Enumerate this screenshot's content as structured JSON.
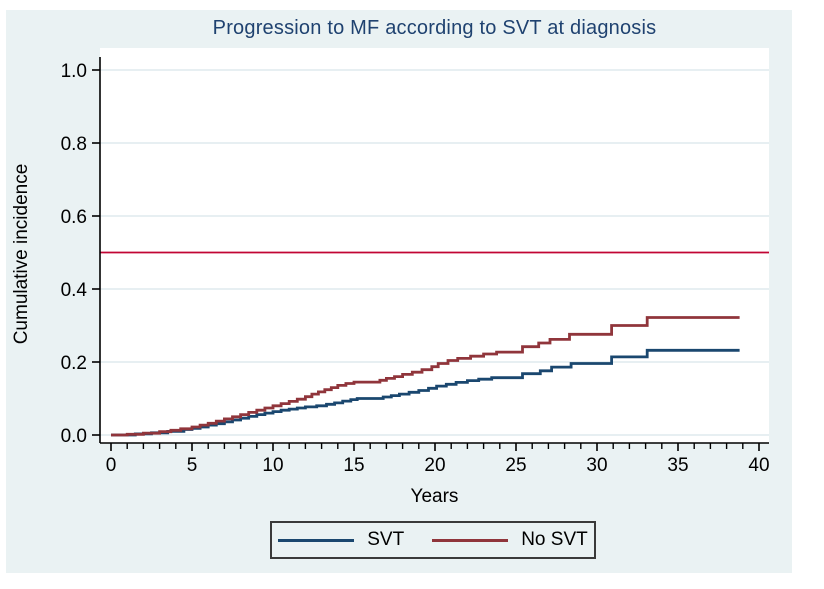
{
  "title": {
    "text": "Progression to MF according to SVT at diagnosis"
  },
  "axis_titles": {
    "x": "Years",
    "y": "Cumulative incidence"
  },
  "legend": {
    "items": [
      {
        "label": "SVT",
        "color": "#1a476f"
      },
      {
        "label": "No SVT",
        "color": "#90353b"
      }
    ]
  },
  "colors": {
    "background": "#eaf2f3",
    "plot_background": "#ffffff",
    "gridline": "#dfeaed",
    "axis": "#000000",
    "title": "#1f4270",
    "reference_line": "#c10534",
    "svt_series": "#1a476f",
    "no_svt_series": "#90353b"
  },
  "chart_data": {
    "type": "line",
    "subtype": "step-cumulative-incidence",
    "title": "Progression to MF according to SVT at diagnosis",
    "xlabel": "Years",
    "ylabel": "Cumulative incidence",
    "xlim": [
      0,
      40
    ],
    "ylim": [
      0.0,
      1.0
    ],
    "grid": true,
    "legend_position": "bottom",
    "x_ticks": [
      0,
      5,
      10,
      15,
      20,
      25,
      30,
      35,
      40
    ],
    "x_minor_tick_step": 1,
    "y_ticks": [
      {
        "value": 0.0,
        "label": "0.0"
      },
      {
        "value": 0.2,
        "label": "0.2"
      },
      {
        "value": 0.4,
        "label": "0.4"
      },
      {
        "value": 0.6,
        "label": "0.6"
      },
      {
        "value": 0.8,
        "label": "0.8"
      },
      {
        "value": 1.0,
        "label": "1.0"
      }
    ],
    "reference_line": {
      "y": 0.5,
      "color": "#c10534"
    },
    "series": [
      {
        "name": "SVT",
        "color": "#1a476f",
        "points": [
          [
            0,
            0
          ],
          [
            1.5,
            0.003
          ],
          [
            2.5,
            0.006
          ],
          [
            3.5,
            0.01
          ],
          [
            4.5,
            0.015
          ],
          [
            5,
            0.018
          ],
          [
            5.5,
            0.022
          ],
          [
            6,
            0.027
          ],
          [
            6.5,
            0.031
          ],
          [
            7,
            0.036
          ],
          [
            7.5,
            0.041
          ],
          [
            8,
            0.046
          ],
          [
            8.5,
            0.051
          ],
          [
            9,
            0.056
          ],
          [
            9.5,
            0.06
          ],
          [
            10,
            0.064
          ],
          [
            10.5,
            0.068
          ],
          [
            11,
            0.071
          ],
          [
            11.5,
            0.074
          ],
          [
            12,
            0.077
          ],
          [
            12.7,
            0.08
          ],
          [
            13.3,
            0.084
          ],
          [
            13.8,
            0.088
          ],
          [
            14.3,
            0.093
          ],
          [
            14.8,
            0.097
          ],
          [
            15.2,
            0.1
          ],
          [
            16.8,
            0.104
          ],
          [
            17.3,
            0.108
          ],
          [
            17.8,
            0.112
          ],
          [
            18.4,
            0.117
          ],
          [
            19,
            0.122
          ],
          [
            19.6,
            0.128
          ],
          [
            20.1,
            0.134
          ],
          [
            20.7,
            0.139
          ],
          [
            21.3,
            0.144
          ],
          [
            22,
            0.149
          ],
          [
            22.7,
            0.153
          ],
          [
            23.5,
            0.157
          ],
          [
            25.4,
            0.168
          ],
          [
            26.5,
            0.176
          ],
          [
            27.2,
            0.186
          ],
          [
            28.4,
            0.196
          ],
          [
            30.9,
            0.214
          ],
          [
            33.1,
            0.232
          ],
          [
            38.8,
            0.232
          ]
        ]
      },
      {
        "name": "No SVT",
        "color": "#90353b",
        "points": [
          [
            0,
            0
          ],
          [
            1,
            0.002
          ],
          [
            2,
            0.005
          ],
          [
            3,
            0.009
          ],
          [
            3.7,
            0.013
          ],
          [
            4.3,
            0.017
          ],
          [
            5,
            0.022
          ],
          [
            5.5,
            0.027
          ],
          [
            6,
            0.032
          ],
          [
            6.5,
            0.038
          ],
          [
            7,
            0.044
          ],
          [
            7.5,
            0.05
          ],
          [
            8,
            0.056
          ],
          [
            8.5,
            0.062
          ],
          [
            9,
            0.068
          ],
          [
            9.5,
            0.074
          ],
          [
            10,
            0.08
          ],
          [
            10.5,
            0.086
          ],
          [
            11,
            0.092
          ],
          [
            11.5,
            0.098
          ],
          [
            12,
            0.105
          ],
          [
            12.4,
            0.112
          ],
          [
            12.8,
            0.118
          ],
          [
            13.2,
            0.124
          ],
          [
            13.6,
            0.13
          ],
          [
            14,
            0.136
          ],
          [
            14.5,
            0.141
          ],
          [
            15,
            0.145
          ],
          [
            16.6,
            0.15
          ],
          [
            17,
            0.155
          ],
          [
            17.5,
            0.16
          ],
          [
            18,
            0.166
          ],
          [
            18.6,
            0.172
          ],
          [
            19.2,
            0.179
          ],
          [
            19.8,
            0.187
          ],
          [
            20.2,
            0.196
          ],
          [
            20.8,
            0.204
          ],
          [
            21.4,
            0.21
          ],
          [
            22.2,
            0.216
          ],
          [
            23,
            0.222
          ],
          [
            23.8,
            0.227
          ],
          [
            25.4,
            0.242
          ],
          [
            26.4,
            0.252
          ],
          [
            27.1,
            0.262
          ],
          [
            28.3,
            0.276
          ],
          [
            30.9,
            0.3
          ],
          [
            33.1,
            0.322
          ],
          [
            38.8,
            0.322
          ]
        ]
      }
    ]
  }
}
